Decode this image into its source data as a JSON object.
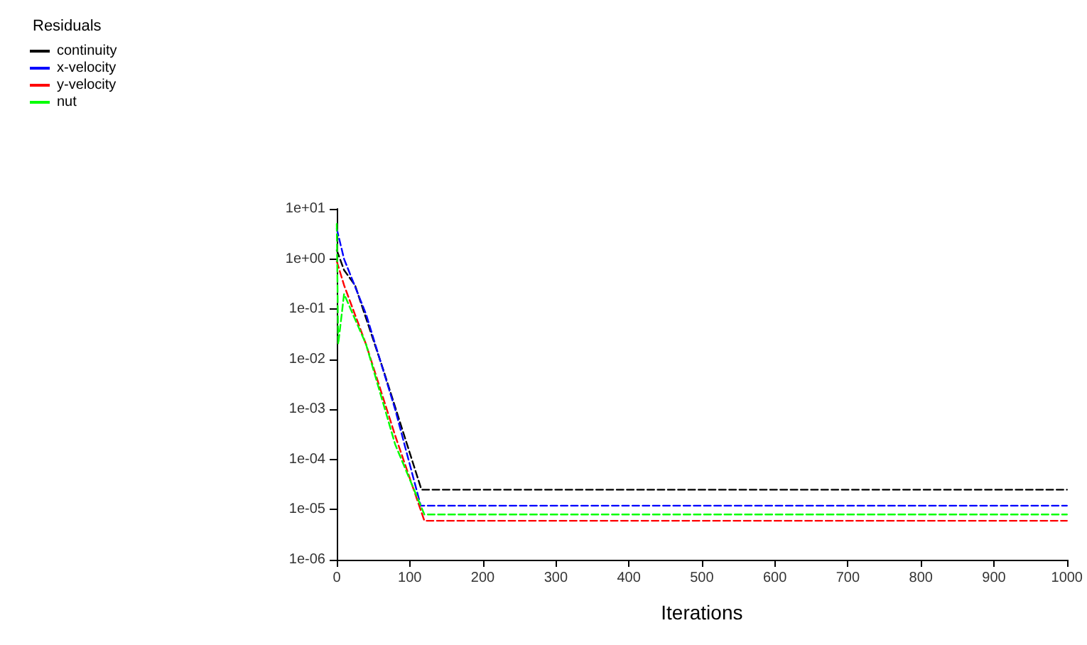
{
  "chart_data": {
    "type": "line",
    "xlabel": "Iterations",
    "legend_title": "Residuals",
    "legend": "top left",
    "log": "y",
    "grid": false,
    "marker": "none",
    "line_style": "dashed",
    "xlim": [
      0,
      1000
    ],
    "xticks": [
      0,
      100,
      200,
      300,
      400,
      500,
      600,
      700,
      800,
      900,
      1000
    ],
    "ylim": [
      1e-06,
      10
    ],
    "yticks": [
      {
        "value": 10,
        "label": "1e+01"
      },
      {
        "value": 1,
        "label": "1e+00"
      },
      {
        "value": 0.1,
        "label": "1e-01"
      },
      {
        "value": 0.01,
        "label": "1e-02"
      },
      {
        "value": 0.001,
        "label": "1e-03"
      },
      {
        "value": 0.0001,
        "label": "1e-04"
      },
      {
        "value": 1e-05,
        "label": "1e-05"
      },
      {
        "value": 1e-06,
        "label": "1e-06"
      }
    ],
    "series": [
      {
        "name": "continuity",
        "color": "#000000",
        "x": [
          0,
          10,
          25,
          64,
          116,
          300,
          600,
          1000
        ],
        "values": [
          1.5,
          0.6,
          0.3,
          0.006,
          2.5e-05,
          2.5e-05,
          2.5e-05,
          2.5e-05
        ]
      },
      {
        "name": "x-velocity",
        "color": "#0000ff",
        "x": [
          0,
          10,
          40,
          80,
          115,
          300,
          600,
          1000
        ],
        "values": [
          4,
          1,
          0.08,
          0.001,
          1.2e-05,
          1.2e-05,
          1.2e-05,
          1.2e-05
        ]
      },
      {
        "name": "y-velocity",
        "color": "#ff0000",
        "x": [
          0,
          10,
          40,
          80,
          120,
          300,
          600,
          1000
        ],
        "values": [
          0.9,
          0.3,
          0.02,
          0.0003,
          6e-06,
          6e-06,
          6e-06,
          6e-06
        ]
      },
      {
        "name": "nut",
        "color": "#00ff00",
        "x": [
          0,
          2,
          10,
          40,
          80,
          120,
          300,
          600,
          1000
        ],
        "values": [
          5,
          0.02,
          0.2,
          0.02,
          0.0002,
          8e-06,
          8e-06,
          8e-06,
          8e-06
        ]
      }
    ]
  }
}
